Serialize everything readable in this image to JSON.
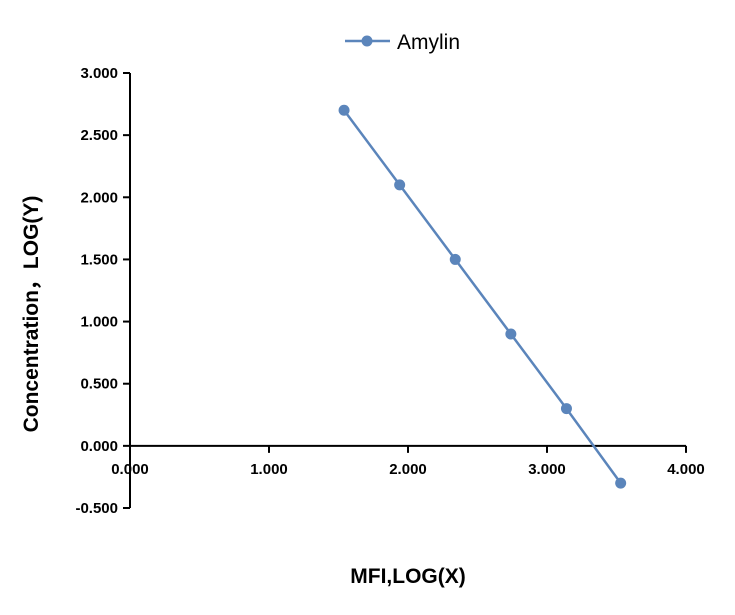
{
  "chart_data": {
    "type": "line",
    "title": "",
    "xlabel": "MFI,LOG(X)",
    "ylabel": "Concentration，LOG(Y)",
    "xlim": [
      0,
      4
    ],
    "ylim": [
      -0.5,
      3
    ],
    "x_ticks": [
      0,
      1,
      2,
      3,
      4
    ],
    "y_ticks": [
      -0.5,
      0,
      0.5,
      1,
      1.5,
      2,
      2.5,
      3
    ],
    "x_tick_labels": [
      "0.000",
      "1.000",
      "2.000",
      "3.000",
      "4.000"
    ],
    "y_tick_labels": [
      "-0.500",
      "0.000",
      "0.500",
      "1.000",
      "1.500",
      "2.000",
      "2.500",
      "3.000"
    ],
    "grid": false,
    "legend_position": "top-center",
    "series": [
      {
        "name": "Amylin",
        "color": "#5b85bb",
        "marker": "circle",
        "x": [
          1.54,
          1.94,
          2.34,
          2.74,
          3.14,
          3.53
        ],
        "y": [
          2.7,
          2.1,
          1.5,
          0.9,
          0.3,
          -0.3
        ]
      }
    ]
  }
}
